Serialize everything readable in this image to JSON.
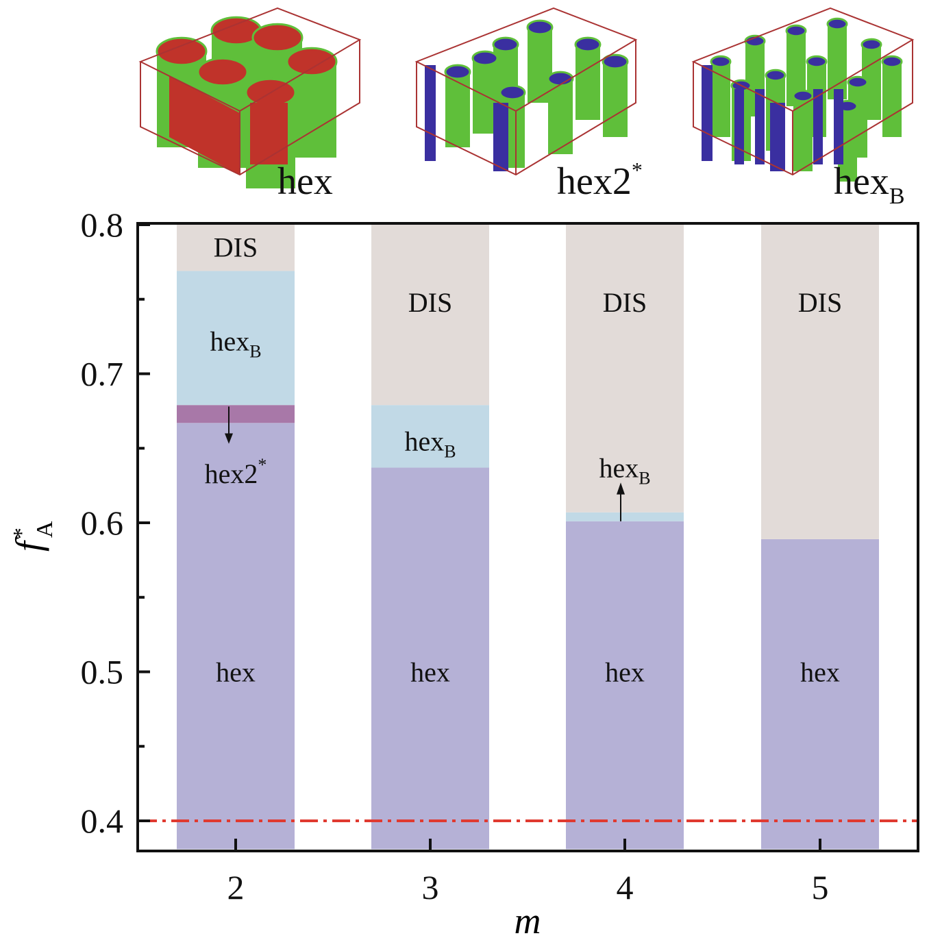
{
  "chart_data": {
    "type": "bar",
    "subtype": "stacked phase diagram",
    "xlabel": "m",
    "ylabel": "f*A",
    "ylabel_parts": {
      "main": "f",
      "sup": "*",
      "sub": "A"
    },
    "categories": [
      "2",
      "3",
      "4",
      "5"
    ],
    "ylim": [
      0.381,
      0.8
    ],
    "yticks": [
      "0.4",
      "0.5",
      "0.6",
      "0.7",
      "0.8"
    ],
    "ytick_values": [
      0.4,
      0.5,
      0.6,
      0.7,
      0.8
    ],
    "grid": false,
    "reference_line": {
      "value": 0.4,
      "style": "dash-dot",
      "color": "#e03a30"
    },
    "phases": {
      "hex": {
        "color": "#b5b1d6"
      },
      "hex2*": {
        "color": "#a878a8"
      },
      "hexB": {
        "color": "#c1d9e6"
      },
      "DIS": {
        "color": "#e2dbd8"
      }
    },
    "bars": [
      {
        "m": "2",
        "segments": [
          {
            "phase": "hex",
            "from": 0.381,
            "to": 0.667
          },
          {
            "phase": "hex2*",
            "from": 0.667,
            "to": 0.679
          },
          {
            "phase": "hexB",
            "from": 0.679,
            "to": 0.769
          },
          {
            "phase": "DIS",
            "from": 0.769,
            "to": 0.8
          }
        ]
      },
      {
        "m": "3",
        "segments": [
          {
            "phase": "hex",
            "from": 0.381,
            "to": 0.637
          },
          {
            "phase": "hexB",
            "from": 0.637,
            "to": 0.679
          },
          {
            "phase": "DIS",
            "from": 0.679,
            "to": 0.8
          }
        ]
      },
      {
        "m": "4",
        "segments": [
          {
            "phase": "hex",
            "from": 0.381,
            "to": 0.601
          },
          {
            "phase": "hexB",
            "from": 0.601,
            "to": 0.607
          },
          {
            "phase": "DIS",
            "from": 0.607,
            "to": 0.8
          }
        ]
      },
      {
        "m": "5",
        "segments": [
          {
            "phase": "hex",
            "from": 0.381,
            "to": 0.589
          },
          {
            "phase": "DIS",
            "from": 0.589,
            "to": 0.8
          }
        ]
      }
    ],
    "labels": [
      {
        "bar": "2",
        "text": "DIS",
        "at": 0.785
      },
      {
        "bar": "2",
        "text": "hex",
        "sub": "B",
        "at": 0.722
      },
      {
        "bar": "2",
        "text": "hex2",
        "sup": "*",
        "at": 0.633,
        "arrow": "down"
      },
      {
        "bar": "2",
        "text": "hex",
        "at": 0.5
      },
      {
        "bar": "3",
        "text": "DIS",
        "at": 0.748
      },
      {
        "bar": "3",
        "text": "hex",
        "sub": "B",
        "at": 0.655
      },
      {
        "bar": "3",
        "text": "hex",
        "at": 0.5
      },
      {
        "bar": "4",
        "text": "DIS",
        "at": 0.748
      },
      {
        "bar": "4",
        "text": "hex",
        "sub": "B",
        "at": 0.637,
        "arrow": "up"
      },
      {
        "bar": "4",
        "text": "hex",
        "at": 0.5
      },
      {
        "bar": "5",
        "text": "DIS",
        "at": 0.748
      },
      {
        "bar": "5",
        "text": "hex",
        "at": 0.5
      }
    ]
  },
  "insets": [
    {
      "label": "hex",
      "sup": "",
      "sub": ""
    },
    {
      "label": "hex2",
      "sup": "*",
      "sub": ""
    },
    {
      "label": "hex",
      "sup": "",
      "sub": "B"
    }
  ]
}
